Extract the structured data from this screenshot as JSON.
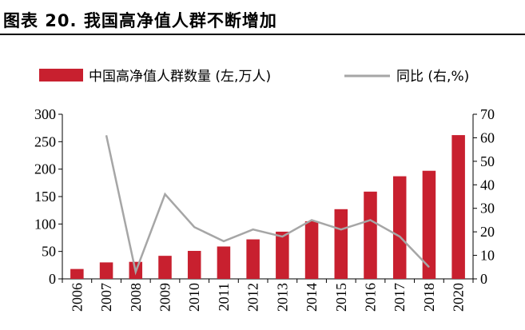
{
  "figure_title": "图表 20. 我国高净值人群不断增加",
  "colors": {
    "bar": "#C8202F",
    "line": "#A6A6A6",
    "axis": "#000000"
  },
  "chart_data": {
    "type": "bar",
    "categories": [
      "2006",
      "2007",
      "2008",
      "2009",
      "2010",
      "2011",
      "2012",
      "2013",
      "2014",
      "2015",
      "2016",
      "2017",
      "2018",
      "2020"
    ],
    "series": [
      {
        "name": "中国高净值人群数量 (左,万人)",
        "type": "bar",
        "axis": "left",
        "values": [
          18,
          30,
          31,
          42,
          51,
          59,
          72,
          86,
          105,
          127,
          159,
          187,
          197,
          262
        ]
      },
      {
        "name": "同比 (右,%)",
        "type": "line",
        "axis": "right",
        "values": [
          null,
          61,
          3,
          36,
          22,
          16,
          21,
          18,
          25,
          21,
          25,
          18,
          5,
          null
        ]
      }
    ],
    "y_left": {
      "lim": [
        0,
        300
      ],
      "ticks": [
        "0",
        "50",
        "100",
        "150",
        "200",
        "250",
        "300"
      ]
    },
    "y_right": {
      "lim": [
        0,
        70
      ],
      "ticks": [
        "0",
        "10",
        "20",
        "30",
        "40",
        "50",
        "60",
        "70"
      ]
    },
    "legend_position": "top",
    "grid": false
  }
}
